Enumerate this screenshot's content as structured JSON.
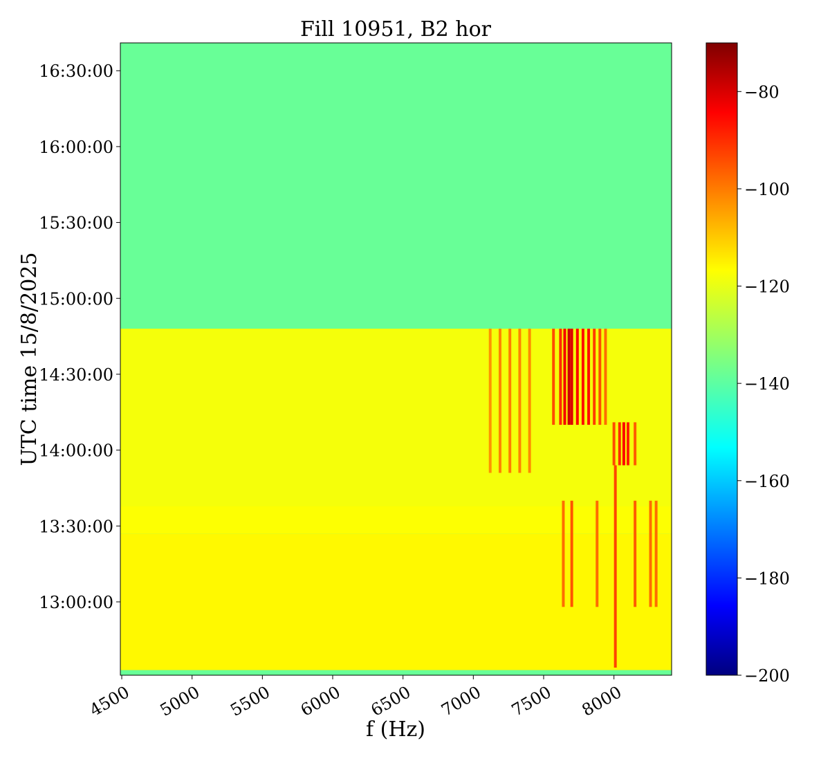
{
  "chart_data": {
    "type": "heatmap",
    "title": "Fill 10951, B2 hor",
    "xlabel": "f (Hz)",
    "ylabel": "UTC time 15/8/2025",
    "xlim": [
      4490,
      8410
    ],
    "x_ticks": [
      4500,
      5000,
      5500,
      6000,
      6500,
      7000,
      7500,
      8000
    ],
    "x_tick_labels": [
      "4500",
      "5000",
      "5500",
      "6000",
      "6500",
      "7000",
      "7500",
      "8000"
    ],
    "y_ticks_minutes": [
      780,
      810,
      840,
      870,
      900,
      930,
      960,
      990
    ],
    "y_tick_labels": [
      "13:00:00",
      "13:30:00",
      "14:00:00",
      "14:30:00",
      "15:00:00",
      "15:30:00",
      "16:00:00",
      "16:30:00"
    ],
    "ylim_minutes": [
      751,
      1001
    ],
    "colormap": "jet",
    "colorbar": {
      "range": [
        -200,
        -70
      ],
      "ticks": [
        -80,
        -100,
        -120,
        -140,
        -160,
        -180,
        -200
      ],
      "tick_labels": [
        "−80",
        "−100",
        "−120",
        "−140",
        "−160",
        "−180",
        "−200"
      ]
    },
    "regions": [
      {
        "t_from_min": 888,
        "t_to_min": 1001,
        "level": -138
      },
      {
        "t_from_min": 818,
        "t_to_min": 888,
        "level": -120
      },
      {
        "t_from_min": 807,
        "t_to_min": 818,
        "level": -119
      },
      {
        "t_from_min": 753,
        "t_to_min": 807,
        "level": -118
      },
      {
        "t_from_min": 751,
        "t_to_min": 753,
        "level": -138
      }
    ],
    "lines": [
      {
        "f": 7120,
        "t_from_min": 831,
        "t_to_min": 888,
        "level": -105
      },
      {
        "f": 7190,
        "t_from_min": 831,
        "t_to_min": 888,
        "level": -103
      },
      {
        "f": 7260,
        "t_from_min": 831,
        "t_to_min": 888,
        "level": -102
      },
      {
        "f": 7330,
        "t_from_min": 831,
        "t_to_min": 888,
        "level": -103
      },
      {
        "f": 7400,
        "t_from_min": 831,
        "t_to_min": 888,
        "level": -104
      },
      {
        "f": 7570,
        "t_from_min": 850,
        "t_to_min": 888,
        "level": -96
      },
      {
        "f": 7620,
        "t_from_min": 850,
        "t_to_min": 888,
        "level": -92
      },
      {
        "f": 7650,
        "t_from_min": 850,
        "t_to_min": 888,
        "level": -85
      },
      {
        "f": 7680,
        "t_from_min": 850,
        "t_to_min": 888,
        "level": -80
      },
      {
        "f": 7700,
        "t_from_min": 850,
        "t_to_min": 888,
        "level": -82
      },
      {
        "f": 7740,
        "t_from_min": 850,
        "t_to_min": 888,
        "level": -86
      },
      {
        "f": 7780,
        "t_from_min": 850,
        "t_to_min": 888,
        "level": -88
      },
      {
        "f": 7820,
        "t_from_min": 850,
        "t_to_min": 888,
        "level": -88
      },
      {
        "f": 7860,
        "t_from_min": 850,
        "t_to_min": 888,
        "level": -94
      },
      {
        "f": 7900,
        "t_from_min": 850,
        "t_to_min": 888,
        "level": -96
      },
      {
        "f": 7940,
        "t_from_min": 850,
        "t_to_min": 888,
        "level": -100
      },
      {
        "f": 8000,
        "t_from_min": 834,
        "t_to_min": 851,
        "level": -96
      },
      {
        "f": 8040,
        "t_from_min": 834,
        "t_to_min": 851,
        "level": -92
      },
      {
        "f": 8070,
        "t_from_min": 834,
        "t_to_min": 851,
        "level": -86
      },
      {
        "f": 8100,
        "t_from_min": 834,
        "t_to_min": 851,
        "level": -90
      },
      {
        "f": 8150,
        "t_from_min": 834,
        "t_to_min": 851,
        "level": -98
      },
      {
        "f": 7640,
        "t_from_min": 778,
        "t_to_min": 820,
        "level": -100
      },
      {
        "f": 7700,
        "t_from_min": 778,
        "t_to_min": 820,
        "level": -97
      },
      {
        "f": 7880,
        "t_from_min": 778,
        "t_to_min": 820,
        "level": -100
      },
      {
        "f": 8150,
        "t_from_min": 778,
        "t_to_min": 820,
        "level": -98
      },
      {
        "f": 8260,
        "t_from_min": 778,
        "t_to_min": 820,
        "level": -100
      },
      {
        "f": 8300,
        "t_from_min": 778,
        "t_to_min": 820,
        "level": -100
      },
      {
        "f": 8010,
        "t_from_min": 754,
        "t_to_min": 834,
        "level": -95
      }
    ]
  }
}
